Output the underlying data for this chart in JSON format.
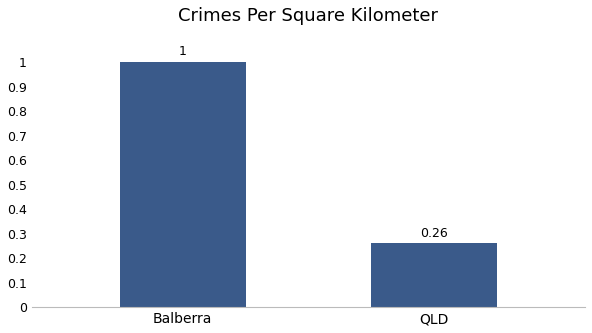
{
  "categories": [
    "Balberra",
    "QLD"
  ],
  "values": [
    1.0,
    0.26
  ],
  "bar_color": "#3a5a8a",
  "title": "Crimes Per Square Kilometer",
  "title_fontsize": 13,
  "ylim": [
    0,
    1.1
  ],
  "yticks": [
    0,
    0.1,
    0.2,
    0.3,
    0.4,
    0.5,
    0.6,
    0.7,
    0.8,
    0.9,
    1.0
  ],
  "bar_labels": [
    "1",
    "0.26"
  ],
  "background_color": "#ffffff",
  "bar_width": 0.5
}
